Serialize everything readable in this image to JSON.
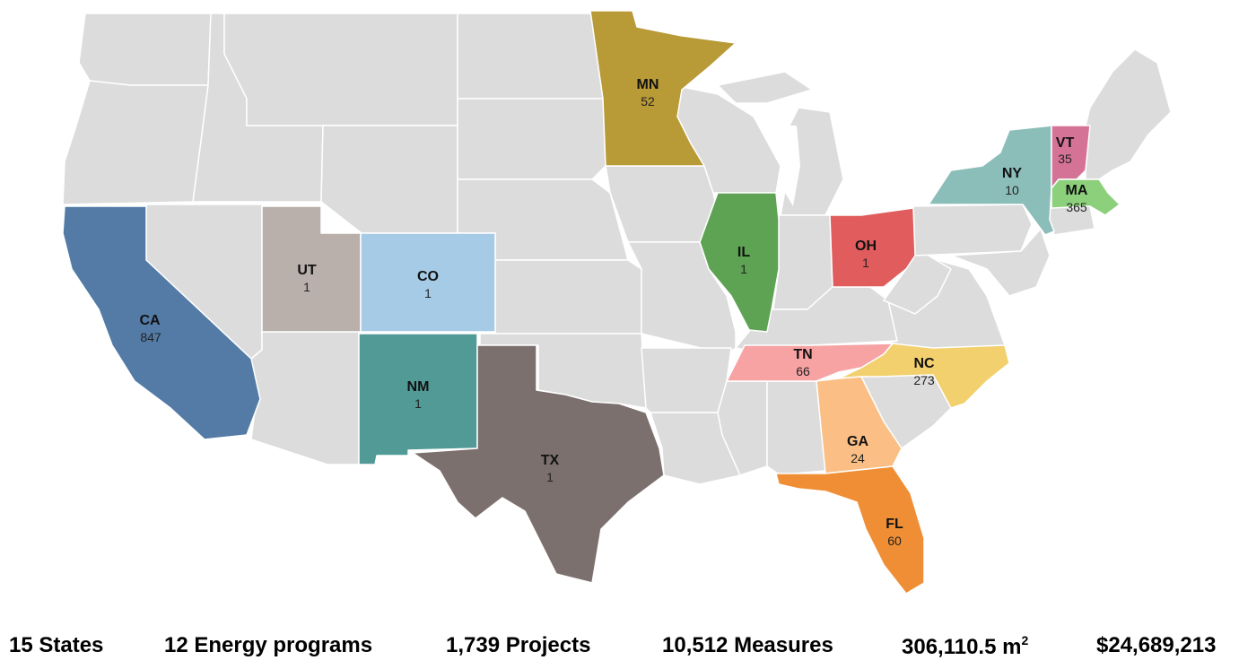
{
  "colors": {
    "base": "#dcdcdc",
    "border": "#ffffff",
    "CA": "#537ba6",
    "UT": "#b9afab",
    "CO": "#a6cbe6",
    "NM": "#519a96",
    "TX": "#7b706d",
    "MN": "#b89a36",
    "IL": "#5ea353",
    "OH": "#e05c5d",
    "TN": "#f7a2a3",
    "NC": "#f2d06d",
    "GA": "#fbbf86",
    "FL": "#f08e35",
    "NY": "#8cbeb9",
    "VT": "#d57397",
    "MA": "#8dd07c"
  },
  "states": [
    {
      "abbr": "CA",
      "count": "847"
    },
    {
      "abbr": "UT",
      "count": "1"
    },
    {
      "abbr": "CO",
      "count": "1"
    },
    {
      "abbr": "NM",
      "count": "1"
    },
    {
      "abbr": "TX",
      "count": "1"
    },
    {
      "abbr": "MN",
      "count": "52"
    },
    {
      "abbr": "IL",
      "count": "1"
    },
    {
      "abbr": "OH",
      "count": "1"
    },
    {
      "abbr": "TN",
      "count": "66"
    },
    {
      "abbr": "NC",
      "count": "273"
    },
    {
      "abbr": "GA",
      "count": "24"
    },
    {
      "abbr": "FL",
      "count": "60"
    },
    {
      "abbr": "NY",
      "count": "10"
    },
    {
      "abbr": "VT",
      "count": "35"
    },
    {
      "abbr": "MA",
      "count": "365"
    }
  ],
  "stats": {
    "states": "15 States",
    "programs": "12 Energy programs",
    "projects": "1,739 Projects",
    "measures": "10,512 Measures",
    "area_value": "306,110.5 m",
    "area_sup": "2",
    "cost": "$24,689,213"
  }
}
